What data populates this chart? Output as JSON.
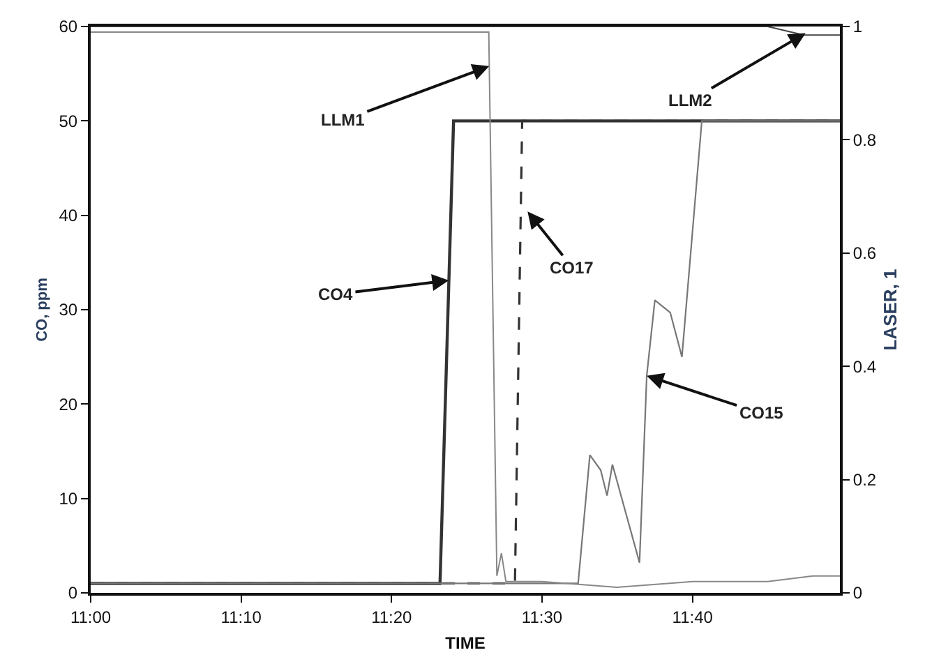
{
  "chart_data": {
    "type": "line",
    "xlabel": "TIME",
    "ylabel": "CO, ppm",
    "y2label": "LASER, 1",
    "series": [
      {
        "color": "#333333",
        "line_style": "solid",
        "x": [
          11.0,
          11.387,
          11.402,
          11.83
        ],
        "values": [
          1,
          1,
          50,
          50
        ]
      },
      {
        "color": "#333333",
        "line_style": "dashed",
        "x": [
          11.0,
          11.47,
          11.478,
          11.83
        ],
        "values": [
          1,
          1,
          50,
          50
        ]
      },
      {
        "color": "#777777",
        "line_style": "solid",
        "x": [
          11.0,
          11.54,
          11.553,
          11.565,
          11.572,
          11.578,
          11.608,
          11.616,
          11.625,
          11.642,
          11.655,
          11.677,
          11.83
        ],
        "values": [
          1,
          1,
          14.6,
          13.0,
          10.3,
          13.6,
          3.2,
          23,
          31.0,
          29.7,
          25.0,
          50,
          50
        ]
      },
      {
        "color": "#888888",
        "line_style": "solid",
        "axis": "y2",
        "x": [
          11.0,
          11.441,
          11.45,
          11.455,
          11.46,
          11.5,
          11.583,
          11.667,
          11.75,
          11.8,
          11.83
        ],
        "values": [
          0.99,
          0.99,
          0.03,
          0.07,
          0.02,
          0.02,
          0.01,
          0.02,
          0.02,
          0.03,
          0.03
        ]
      },
      {
        "color": "#444444",
        "line_style": "solid",
        "axis": "y2",
        "x": [
          11.0,
          11.75,
          11.79,
          11.83
        ],
        "values": [
          1,
          1,
          0.985,
          0.985
        ]
      }
    ],
    "annotations": [
      {
        "text": "LLM1",
        "x": 11.44156,
        "y": 55.8
      },
      {
        "text": "LLM2",
        "x": 11.792,
        "y": 59.3
      },
      {
        "text": "CO17",
        "x": 11.484,
        "y": 40.4
      },
      {
        "text": "CO4",
        "x": 11.3968,
        "y": 33.1
      },
      {
        "text": "CO15",
        "x": 11.616,
        "y": 23
      }
    ],
    "xlim": [
      11.0,
      11.83
    ],
    "xticks": [
      {
        "value": 11.0,
        "label": "11:00"
      },
      {
        "value": 11.1667,
        "label": "11:10"
      },
      {
        "value": 11.3333,
        "label": "11:20"
      },
      {
        "value": 11.5,
        "label": "11:30"
      },
      {
        "value": 11.6667,
        "label": "11:40"
      }
    ],
    "ylim": [
      0,
      60
    ],
    "yticks": [
      0,
      10,
      20,
      30,
      40,
      50,
      60
    ],
    "y2lim": [
      0,
      1
    ],
    "y2ticks": [
      0,
      0.2,
      0.4,
      0.6,
      0.8,
      1
    ],
    "marker": "none"
  }
}
